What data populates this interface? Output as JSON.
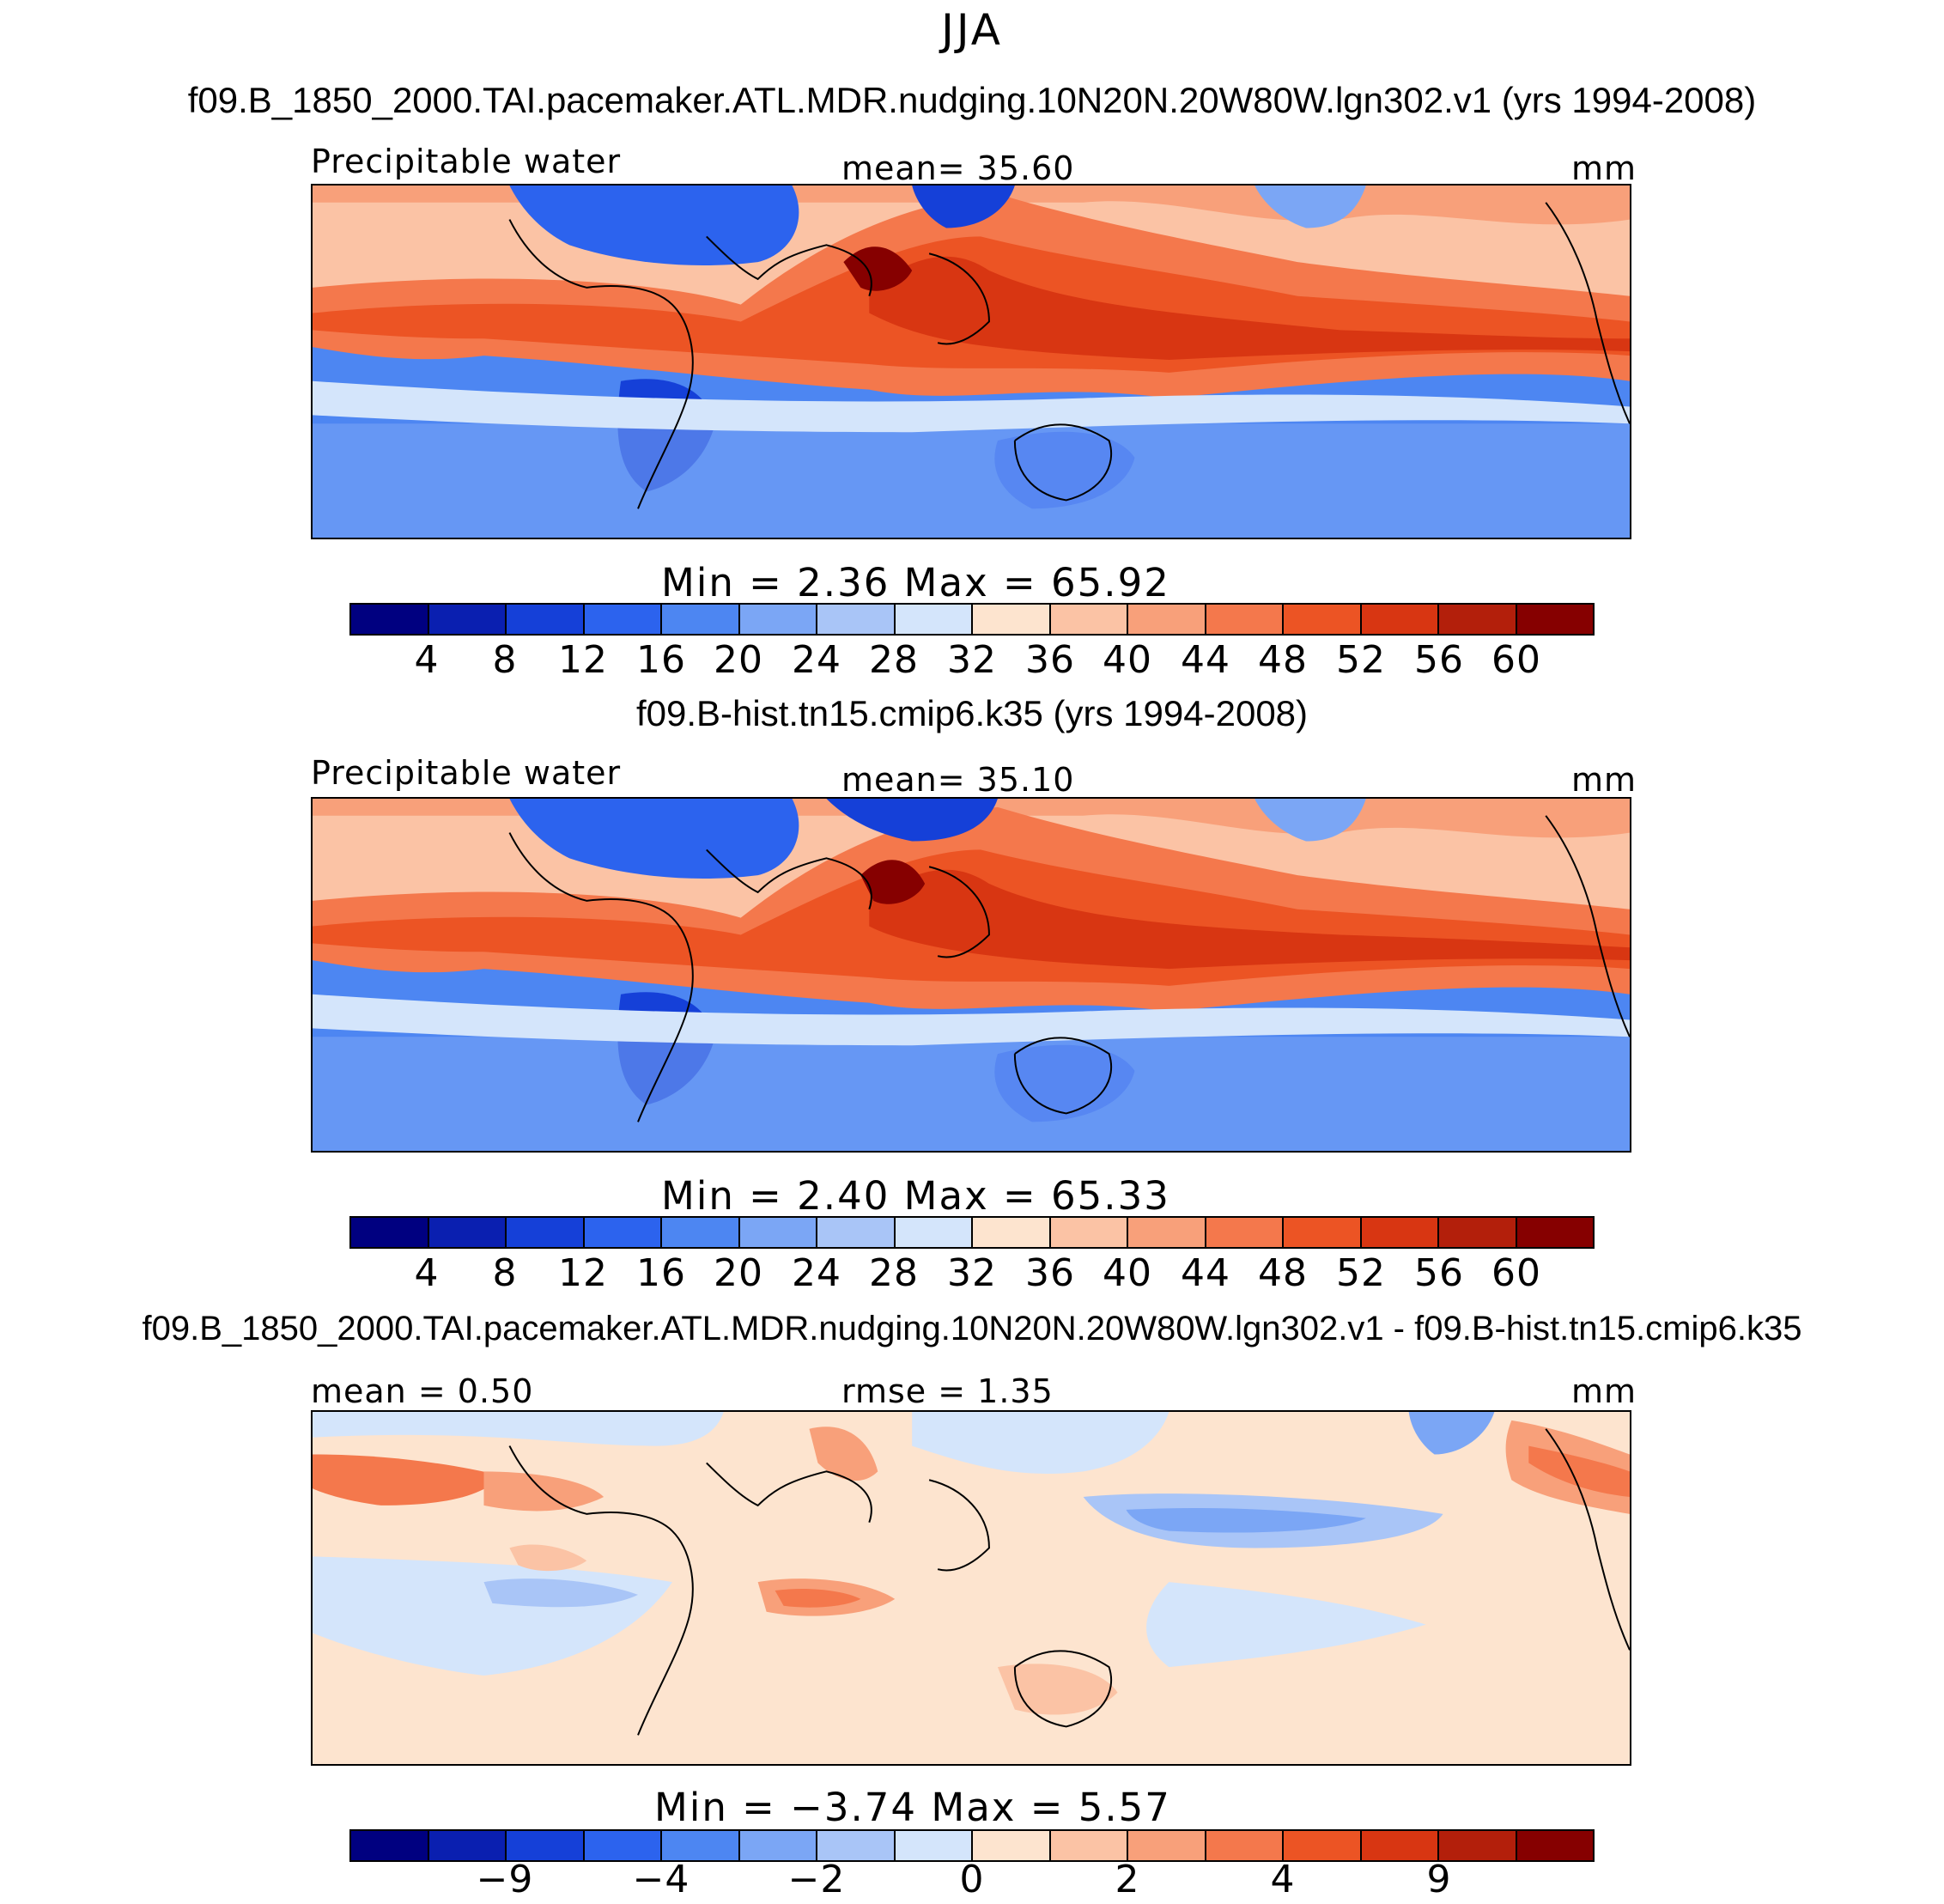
{
  "season": "JJA",
  "panels": [
    {
      "case_title": "f09.B_1850_2000.TAI.pacemaker.ATL.MDR.nudging.10N20N.20W80W.lgn302.v1 (yrs 1994-2008)",
      "variable": "Precipitable water",
      "mean_text": "mean=  35.60",
      "units": "mm",
      "minmax_text": "Min =    2.36  Max =   65.92",
      "ticks": [
        "4",
        "8",
        "12",
        "16",
        "20",
        "24",
        "28",
        "32",
        "36",
        "40",
        "44",
        "48",
        "52",
        "56",
        "60"
      ],
      "colors": [
        "#000080",
        "#0a1fb0",
        "#1540d8",
        "#2c63ee",
        "#4d86f2",
        "#7ba6f5",
        "#a9c5f7",
        "#d4e5fb",
        "#fde4cf",
        "#fbc3a5",
        "#f8a07a",
        "#f4784c",
        "#ec5424",
        "#d83612",
        "#b31f0b",
        "#860000"
      ]
    },
    {
      "case_title": "f09.B-hist.tn15.cmip6.k35 (yrs 1994-2008)",
      "variable": "Precipitable water",
      "mean_text": "mean=  35.10",
      "units": "mm",
      "minmax_text": "Min =    2.40  Max =   65.33",
      "ticks": [
        "4",
        "8",
        "12",
        "16",
        "20",
        "24",
        "28",
        "32",
        "36",
        "40",
        "44",
        "48",
        "52",
        "56",
        "60"
      ],
      "colors": [
        "#000080",
        "#0a1fb0",
        "#1540d8",
        "#2c63ee",
        "#4d86f2",
        "#7ba6f5",
        "#a9c5f7",
        "#d4e5fb",
        "#fde4cf",
        "#fbc3a5",
        "#f8a07a",
        "#f4784c",
        "#ec5424",
        "#d83612",
        "#b31f0b",
        "#860000"
      ]
    },
    {
      "case_title": "f09.B_1850_2000.TAI.pacemaker.ATL.MDR.nudging.10N20N.20W80W.lgn302.v1 - f09.B-hist.tn15.cmip6.k35",
      "variable": "mean =   0.50",
      "mean_text": "rmse =   1.35",
      "units": "mm",
      "minmax_text": "Min =  −3.74  Max =   5.57",
      "ticks": [
        "−9",
        "−4",
        "−2",
        "0",
        "2",
        "4",
        "9"
      ],
      "colors": [
        "#000080",
        "#0a1fb0",
        "#1540d8",
        "#2c63ee",
        "#4d86f2",
        "#7ba6f5",
        "#a9c5f7",
        "#d4e5fb",
        "#fde4cf",
        "#fbc3a5",
        "#f8a07a",
        "#f4784c",
        "#ec5424",
        "#d83612",
        "#b31f0b",
        "#860000"
      ]
    }
  ]
}
